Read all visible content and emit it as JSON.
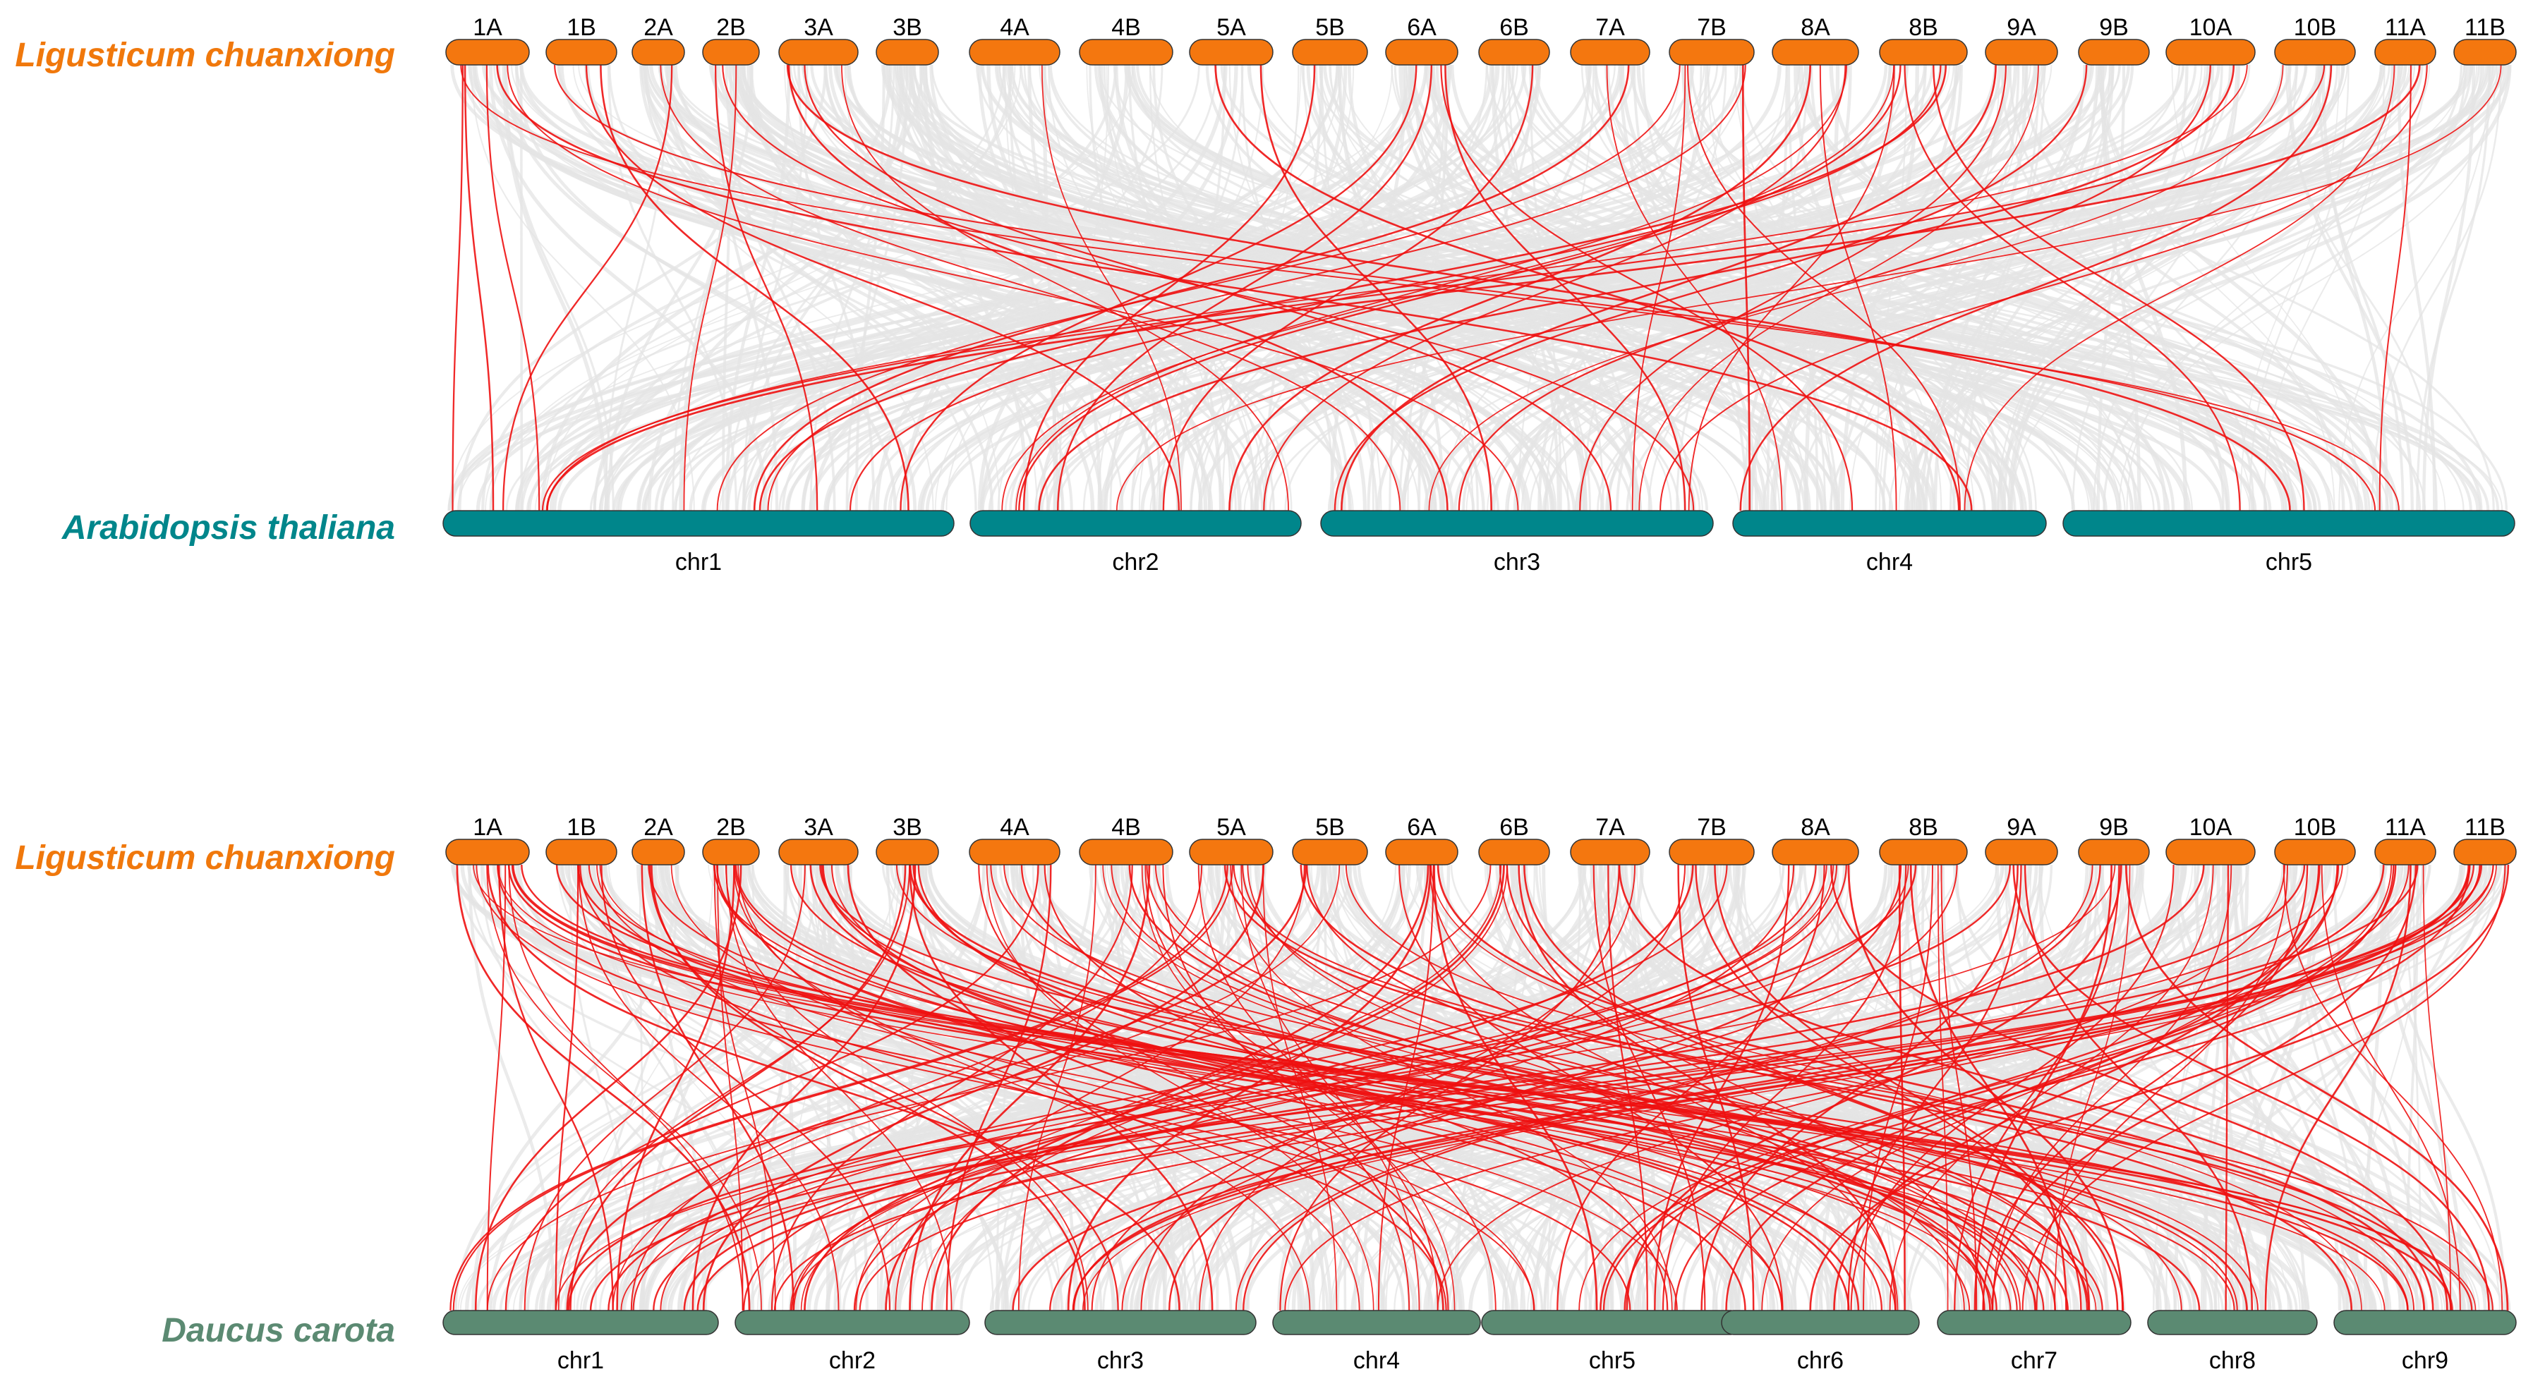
{
  "colors": {
    "lc": "#f4770f",
    "lc_text": "#f0780c",
    "at": "#00868b",
    "dc": "#5b8a72",
    "background_link": "#e4e4e4",
    "highlight_link": "#ee1111"
  },
  "panels": [
    {
      "top_species": "Ligusticum chuanxiong",
      "bottom_species": "Arabidopsis thaliana",
      "top_chromosomes": [
        "1A",
        "1B",
        "2A",
        "2B",
        "3A",
        "3B",
        "4A",
        "4B",
        "5A",
        "5B",
        "6A",
        "6B",
        "7A",
        "7B",
        "8A",
        "8B",
        "9A",
        "9B",
        "10A",
        "10B",
        "11A",
        "11B"
      ],
      "bottom_chromosomes": [
        "chr1",
        "chr2",
        "chr3",
        "chr4",
        "chr5"
      ]
    },
    {
      "top_species": "Ligusticum chuanxiong",
      "bottom_species": "Daucus carota",
      "top_chromosomes": [
        "1A",
        "1B",
        "2A",
        "2B",
        "3A",
        "3B",
        "4A",
        "4B",
        "5A",
        "5B",
        "6A",
        "6B",
        "7A",
        "7B",
        "8A",
        "8B",
        "9A",
        "9B",
        "10A",
        "10B",
        "11A",
        "11B"
      ],
      "bottom_chromosomes": [
        "chr1",
        "chr2",
        "chr3",
        "chr4",
        "chr5",
        "chr6",
        "chr7",
        "chr8",
        "chr9"
      ]
    }
  ]
}
